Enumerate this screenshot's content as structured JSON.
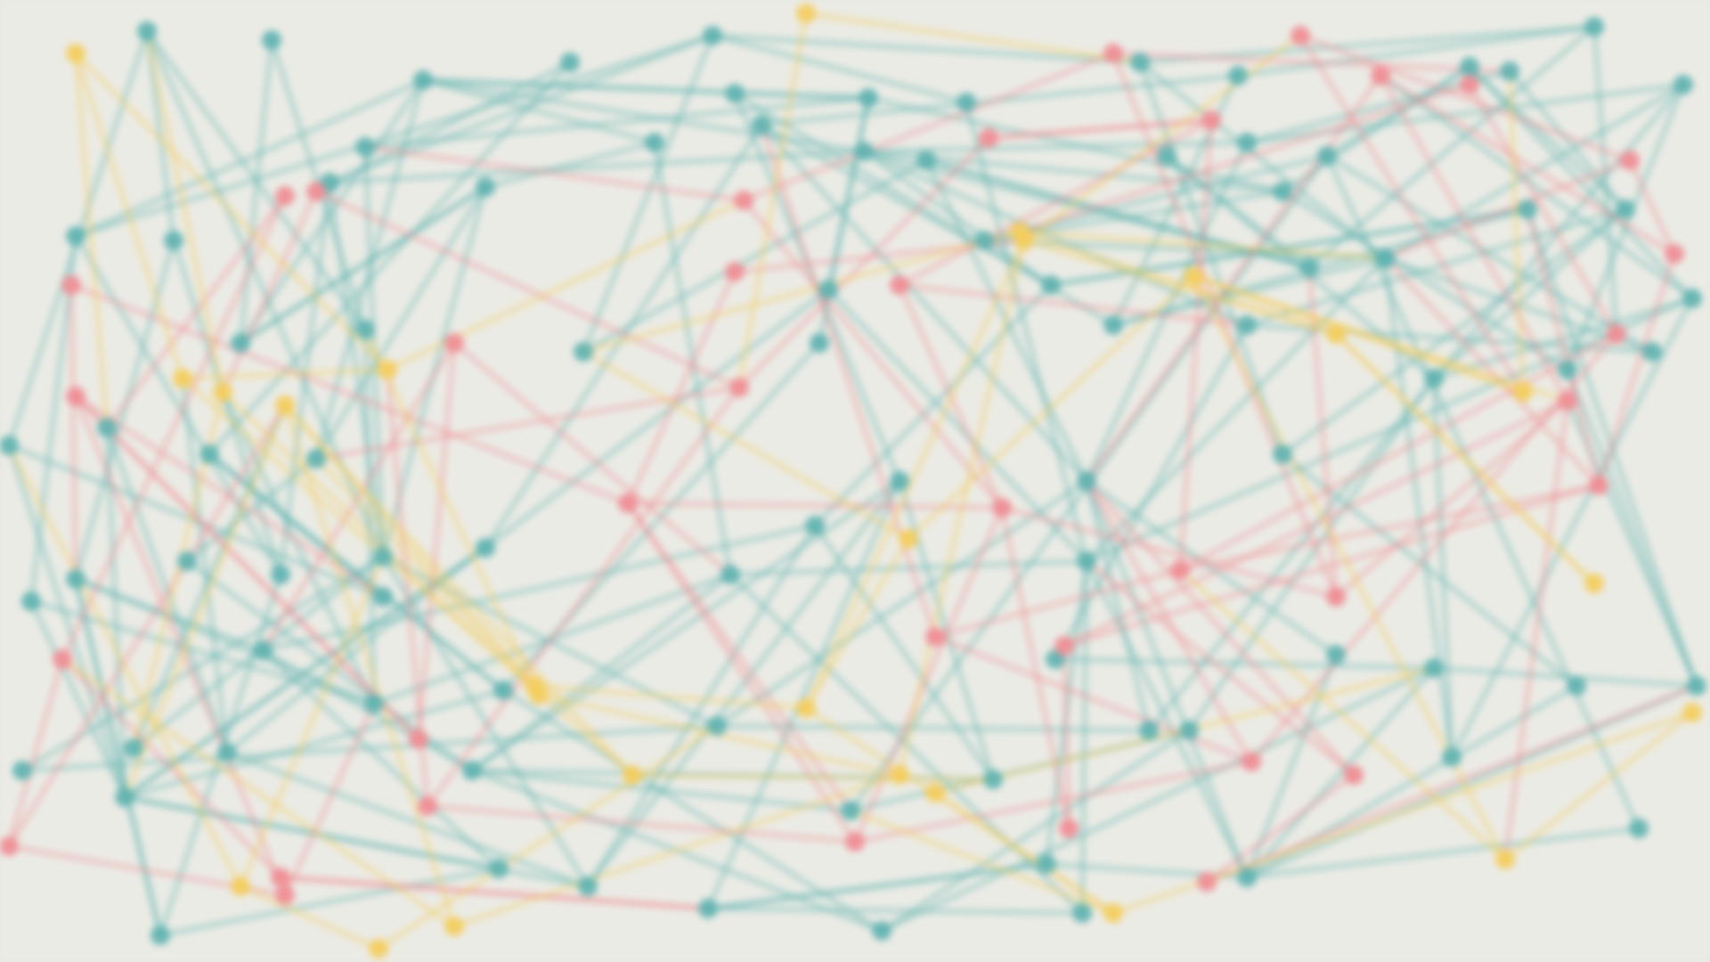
{
  "background_color": "#ebebe5",
  "palette": {
    "teal": "#5fb3b0",
    "red": "#ef8d93",
    "yellow": "#f4cd5c"
  },
  "graph": {
    "description_note": "",
    "node_groups": [
      "teal",
      "red",
      "yellow"
    ]
  }
}
